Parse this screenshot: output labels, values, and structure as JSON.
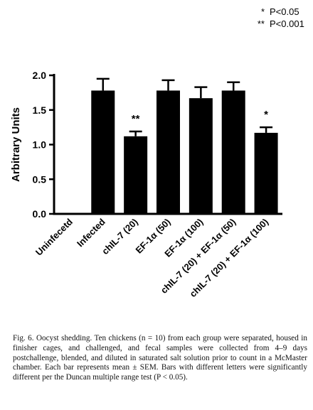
{
  "chart_data": {
    "type": "bar",
    "title": "",
    "xlabel": "",
    "ylabel": "Arbitrary Units",
    "ylim": [
      0,
      2.0
    ],
    "yticks": [
      "0.0",
      "0.5",
      "1.0",
      "1.5",
      "2.0"
    ],
    "categories": [
      "Uninfecetd",
      "Infected",
      "chIL-7 (20)",
      "EF-1α (50)",
      "EF-1α (100)",
      "chIL-7 (20) + EF-1α (50)",
      "chIL-7 (20) + EF-1α (100)"
    ],
    "values": [
      0,
      1.78,
      1.12,
      1.78,
      1.67,
      1.78,
      1.17
    ],
    "errors": [
      0,
      0.17,
      0.07,
      0.15,
      0.16,
      0.12,
      0.08
    ],
    "annotations": [
      "",
      "",
      "**",
      "",
      "",
      "",
      "*"
    ],
    "bar_color": "#000000"
  },
  "legend": [
    {
      "symbol": "*",
      "text": "P<0.05"
    },
    {
      "symbol": "**",
      "text": "P<0.001"
    }
  ],
  "caption": "Fig. 6.   Oocyst shedding. Ten chickens (n = 10) from each group were separated, housed in finisher cages, and challenged, and fecal samples were collected from 4–9 days postchallenge, blended, and diluted in saturated salt solution prior to count in a McMaster chamber. Each bar represents mean ± SEM. Bars with different letters were significantly different per the Duncan multiple range test (P < 0.05)."
}
